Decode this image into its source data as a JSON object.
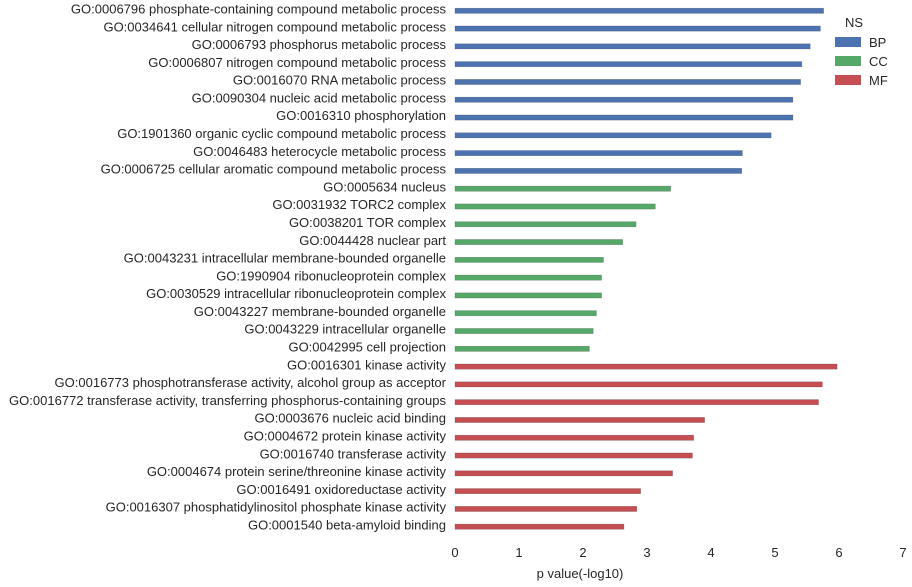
{
  "chart_data": {
    "type": "bar",
    "orientation": "horizontal",
    "xlabel": "p value(-log10)",
    "ylabel": "",
    "xlim": [
      0,
      7
    ],
    "x_ticks": [
      "0",
      "1",
      "2",
      "3",
      "4",
      "5",
      "6",
      "7"
    ],
    "grid": false,
    "legend": {
      "title": "NS",
      "placement": "top-right"
    },
    "series": [
      {
        "name": "BP",
        "color": "#4c72b0"
      },
      {
        "name": "CC",
        "color": "#55a868"
      },
      {
        "name": "MF",
        "color": "#c44e52"
      }
    ],
    "categories": [
      "GO:0006796 phosphate-containing compound metabolic process",
      "GO:0034641 cellular nitrogen compound metabolic process",
      "GO:0006793 phosphorus metabolic process",
      "GO:0006807 nitrogen compound metabolic process",
      "GO:0016070 RNA metabolic process",
      "GO:0090304 nucleic acid metabolic process",
      "GO:0016310 phosphorylation",
      "GO:1901360 organic cyclic compound metabolic process",
      "GO:0046483 heterocycle metabolic process",
      "GO:0006725 cellular aromatic compound metabolic process",
      "GO:0005634 nucleus",
      "GO:0031932 TORC2 complex",
      "GO:0038201 TOR complex",
      "GO:0044428 nuclear part",
      "GO:0043231 intracellular membrane-bounded organelle",
      "GO:1990904 ribonucleoprotein complex",
      "GO:0030529 intracellular ribonucleoprotein complex",
      "GO:0043227 membrane-bounded organelle",
      "GO:0043229 intracellular organelle",
      "GO:0042995 cell projection",
      "GO:0016301 kinase activity",
      "GO:0016773 phosphotransferase activity, alcohol group as acceptor",
      "GO:0016772 transferase activity, transferring phosphorus-containing groups",
      "GO:0003676 nucleic acid binding",
      "GO:0004672 protein kinase activity",
      "GO:0016740 transferase activity",
      "GO:0004674 protein serine/threonine kinase activity",
      "GO:0016491 oxidoreductase activity",
      "GO:0016307 phosphatidylinositol phosphate kinase activity",
      "GO:0001540 beta-amyloid binding"
    ],
    "groups": [
      "BP",
      "BP",
      "BP",
      "BP",
      "BP",
      "BP",
      "BP",
      "BP",
      "BP",
      "BP",
      "CC",
      "CC",
      "CC",
      "CC",
      "CC",
      "CC",
      "CC",
      "CC",
      "CC",
      "CC",
      "MF",
      "MF",
      "MF",
      "MF",
      "MF",
      "MF",
      "MF",
      "MF",
      "MF",
      "MF"
    ],
    "values": [
      5.76,
      5.71,
      5.55,
      5.42,
      5.4,
      5.28,
      5.28,
      4.94,
      4.49,
      4.48,
      3.37,
      3.13,
      2.83,
      2.62,
      2.32,
      2.29,
      2.29,
      2.21,
      2.16,
      2.1,
      5.97,
      5.74,
      5.68,
      3.9,
      3.73,
      3.71,
      3.4,
      2.9,
      2.84,
      2.64
    ]
  }
}
